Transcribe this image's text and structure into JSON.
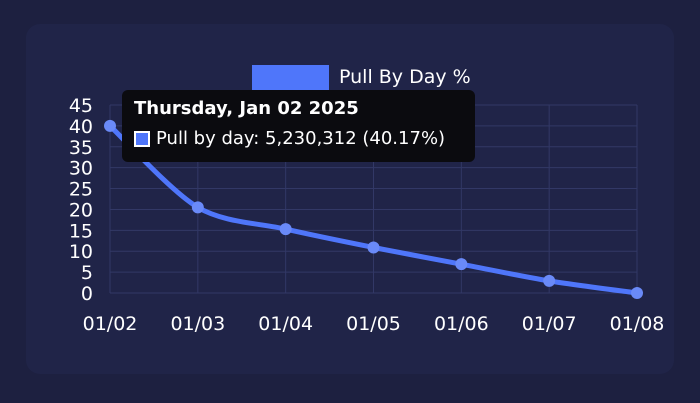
{
  "chart_data": {
    "type": "line",
    "categories": [
      "01/02",
      "01/03",
      "01/04",
      "01/05",
      "01/06",
      "01/07",
      "01/08"
    ],
    "series": [
      {
        "name": "Pull By Day %",
        "values": [
          40,
          20.5,
          15.3,
          10.9,
          6.9,
          2.9,
          0
        ]
      }
    ],
    "ylim": [
      0,
      45
    ],
    "yticks": [
      0,
      5,
      10,
      15,
      20,
      25,
      30,
      35,
      40,
      45
    ],
    "grid": true,
    "legend": "top-center",
    "line_color": "#4f76fa"
  },
  "tooltip": {
    "title": "Thursday, Jan 02 2025",
    "text": "Pull by day: 5,230,312 (40.17%)"
  }
}
